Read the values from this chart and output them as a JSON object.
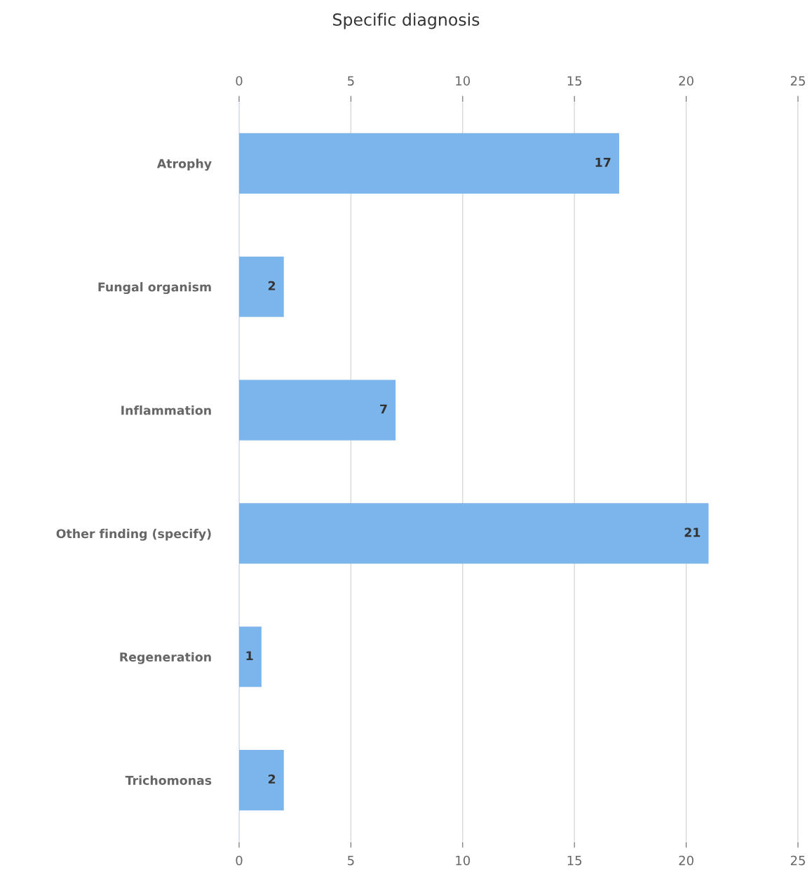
{
  "chart_data": {
    "type": "bar",
    "orientation": "horizontal",
    "title": "Specific diagnosis",
    "categories": [
      "Atrophy",
      "Fungal organism",
      "Inflammation",
      "Other finding (specify)",
      "Regeneration",
      "Trichomonas"
    ],
    "values": [
      17,
      2,
      7,
      21,
      1,
      2
    ],
    "color": "#7cb5ec",
    "xlim": [
      0,
      25
    ],
    "xticks": [
      0,
      5,
      10,
      15,
      20,
      25
    ],
    "x2lim": [
      0,
      25
    ],
    "x2ticks": [
      0,
      5,
      10,
      15,
      20,
      25
    ],
    "grid": "x",
    "data_labels": true
  }
}
